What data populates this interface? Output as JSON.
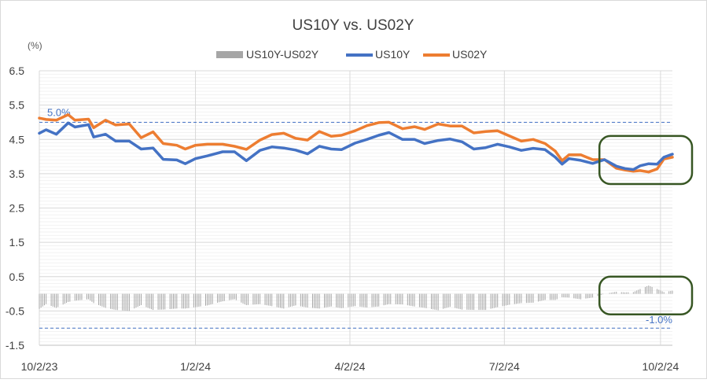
{
  "chart_data": {
    "type": "line",
    "title": "US10Y vs. US02Y",
    "yunit": "(%)",
    "ylim": [
      -1.5,
      6.5
    ],
    "yticks": [
      "6.5",
      "5.5",
      "4.5",
      "3.5",
      "2.5",
      "1.5",
      "0.5",
      "-0.5",
      "-1.5"
    ],
    "ytick_values": [
      6.5,
      5.5,
      4.5,
      3.5,
      2.5,
      1.5,
      0.5,
      -0.5,
      -1.5
    ],
    "xlim": [
      "2023-10-02",
      "2024-10-09"
    ],
    "xticks": [
      "10/2/23",
      "1/2/24",
      "4/2/24",
      "7/2/24",
      "10/2/24"
    ],
    "xtick_dates": [
      "2023-10-02",
      "2024-01-02",
      "2024-04-02",
      "2024-07-02",
      "2024-10-02"
    ],
    "grid": true,
    "legend": "top-center",
    "reference_lines": [
      {
        "value": 5.0,
        "label": "5.0%",
        "color": "#4472C4",
        "style": "dashed"
      },
      {
        "value": -1.0,
        "label": "-1.0%",
        "color": "#4472C4",
        "style": "dashed"
      }
    ],
    "highlight_boxes": [
      {
        "x_from": "2024-08-27",
        "x_to": "2024-10-09",
        "y_from": 3.2,
        "y_to": 4.6,
        "color": "#375623"
      },
      {
        "x_from": "2024-08-27",
        "x_to": "2024-10-09",
        "y_from": -0.6,
        "y_to": 0.5,
        "color": "#375623"
      }
    ],
    "series": [
      {
        "name": "US10Y",
        "color": "#4472C4",
        "kind": "line",
        "points": [
          [
            "2023-10-02",
            4.68
          ],
          [
            "2023-10-06",
            4.78
          ],
          [
            "2023-10-12",
            4.65
          ],
          [
            "2023-10-19",
            4.98
          ],
          [
            "2023-10-23",
            4.86
          ],
          [
            "2023-10-31",
            4.93
          ],
          [
            "2023-11-03",
            4.57
          ],
          [
            "2023-11-10",
            4.65
          ],
          [
            "2023-11-16",
            4.45
          ],
          [
            "2023-11-24",
            4.45
          ],
          [
            "2023-12-01",
            4.22
          ],
          [
            "2023-12-08",
            4.25
          ],
          [
            "2023-12-14",
            3.92
          ],
          [
            "2023-12-22",
            3.9
          ],
          [
            "2023-12-27",
            3.79
          ],
          [
            "2024-01-02",
            3.94
          ],
          [
            "2024-01-09",
            4.02
          ],
          [
            "2024-01-18",
            4.14
          ],
          [
            "2024-01-25",
            4.14
          ],
          [
            "2024-02-01",
            3.88
          ],
          [
            "2024-02-09",
            4.18
          ],
          [
            "2024-02-16",
            4.28
          ],
          [
            "2024-02-23",
            4.25
          ],
          [
            "2024-03-01",
            4.19
          ],
          [
            "2024-03-08",
            4.08
          ],
          [
            "2024-03-15",
            4.3
          ],
          [
            "2024-03-22",
            4.22
          ],
          [
            "2024-03-28",
            4.2
          ],
          [
            "2024-04-05",
            4.39
          ],
          [
            "2024-04-12",
            4.5
          ],
          [
            "2024-04-19",
            4.62
          ],
          [
            "2024-04-25",
            4.7
          ],
          [
            "2024-05-03",
            4.5
          ],
          [
            "2024-05-10",
            4.5
          ],
          [
            "2024-05-16",
            4.38
          ],
          [
            "2024-05-24",
            4.47
          ],
          [
            "2024-05-31",
            4.51
          ],
          [
            "2024-06-07",
            4.43
          ],
          [
            "2024-06-14",
            4.22
          ],
          [
            "2024-06-21",
            4.26
          ],
          [
            "2024-06-28",
            4.36
          ],
          [
            "2024-07-05",
            4.28
          ],
          [
            "2024-07-12",
            4.18
          ],
          [
            "2024-07-19",
            4.24
          ],
          [
            "2024-07-26",
            4.2
          ],
          [
            "2024-08-01",
            3.98
          ],
          [
            "2024-08-05",
            3.78
          ],
          [
            "2024-08-09",
            3.94
          ],
          [
            "2024-08-16",
            3.89
          ],
          [
            "2024-08-23",
            3.8
          ],
          [
            "2024-08-30",
            3.91
          ],
          [
            "2024-09-06",
            3.72
          ],
          [
            "2024-09-11",
            3.65
          ],
          [
            "2024-09-16",
            3.62
          ],
          [
            "2024-09-20",
            3.73
          ],
          [
            "2024-09-25",
            3.79
          ],
          [
            "2024-09-30",
            3.78
          ],
          [
            "2024-10-04",
            3.98
          ],
          [
            "2024-10-09",
            4.07
          ]
        ]
      },
      {
        "name": "US02Y",
        "color": "#ED7D31",
        "kind": "line",
        "points": [
          [
            "2023-10-02",
            5.12
          ],
          [
            "2023-10-06",
            5.08
          ],
          [
            "2023-10-12",
            5.06
          ],
          [
            "2023-10-19",
            5.22
          ],
          [
            "2023-10-23",
            5.06
          ],
          [
            "2023-10-31",
            5.09
          ],
          [
            "2023-11-03",
            4.84
          ],
          [
            "2023-11-10",
            5.06
          ],
          [
            "2023-11-16",
            4.92
          ],
          [
            "2023-11-24",
            4.95
          ],
          [
            "2023-12-01",
            4.55
          ],
          [
            "2023-12-08",
            4.72
          ],
          [
            "2023-12-14",
            4.38
          ],
          [
            "2023-12-22",
            4.33
          ],
          [
            "2023-12-27",
            4.22
          ],
          [
            "2024-01-02",
            4.33
          ],
          [
            "2024-01-09",
            4.36
          ],
          [
            "2024-01-18",
            4.36
          ],
          [
            "2024-01-25",
            4.3
          ],
          [
            "2024-02-01",
            4.21
          ],
          [
            "2024-02-09",
            4.48
          ],
          [
            "2024-02-16",
            4.64
          ],
          [
            "2024-02-23",
            4.68
          ],
          [
            "2024-03-01",
            4.53
          ],
          [
            "2024-03-08",
            4.48
          ],
          [
            "2024-03-15",
            4.73
          ],
          [
            "2024-03-22",
            4.59
          ],
          [
            "2024-03-28",
            4.62
          ],
          [
            "2024-04-05",
            4.75
          ],
          [
            "2024-04-12",
            4.9
          ],
          [
            "2024-04-19",
            4.99
          ],
          [
            "2024-04-25",
            5.0
          ],
          [
            "2024-05-03",
            4.81
          ],
          [
            "2024-05-10",
            4.87
          ],
          [
            "2024-05-16",
            4.79
          ],
          [
            "2024-05-24",
            4.95
          ],
          [
            "2024-05-31",
            4.89
          ],
          [
            "2024-06-07",
            4.89
          ],
          [
            "2024-06-14",
            4.69
          ],
          [
            "2024-06-21",
            4.73
          ],
          [
            "2024-06-28",
            4.75
          ],
          [
            "2024-07-05",
            4.6
          ],
          [
            "2024-07-12",
            4.45
          ],
          [
            "2024-07-19",
            4.5
          ],
          [
            "2024-07-26",
            4.38
          ],
          [
            "2024-08-01",
            4.16
          ],
          [
            "2024-08-05",
            3.88
          ],
          [
            "2024-08-09",
            4.05
          ],
          [
            "2024-08-16",
            4.05
          ],
          [
            "2024-08-23",
            3.91
          ],
          [
            "2024-08-30",
            3.91
          ],
          [
            "2024-09-06",
            3.66
          ],
          [
            "2024-09-11",
            3.61
          ],
          [
            "2024-09-16",
            3.57
          ],
          [
            "2024-09-20",
            3.59
          ],
          [
            "2024-09-25",
            3.55
          ],
          [
            "2024-09-30",
            3.64
          ],
          [
            "2024-10-04",
            3.93
          ],
          [
            "2024-10-09",
            3.98
          ]
        ]
      },
      {
        "name": "US10Y-US02Y",
        "color": "#A6A6A6",
        "kind": "bar",
        "derived_from": [
          "US10Y",
          "US02Y"
        ],
        "operation": "difference"
      }
    ]
  }
}
